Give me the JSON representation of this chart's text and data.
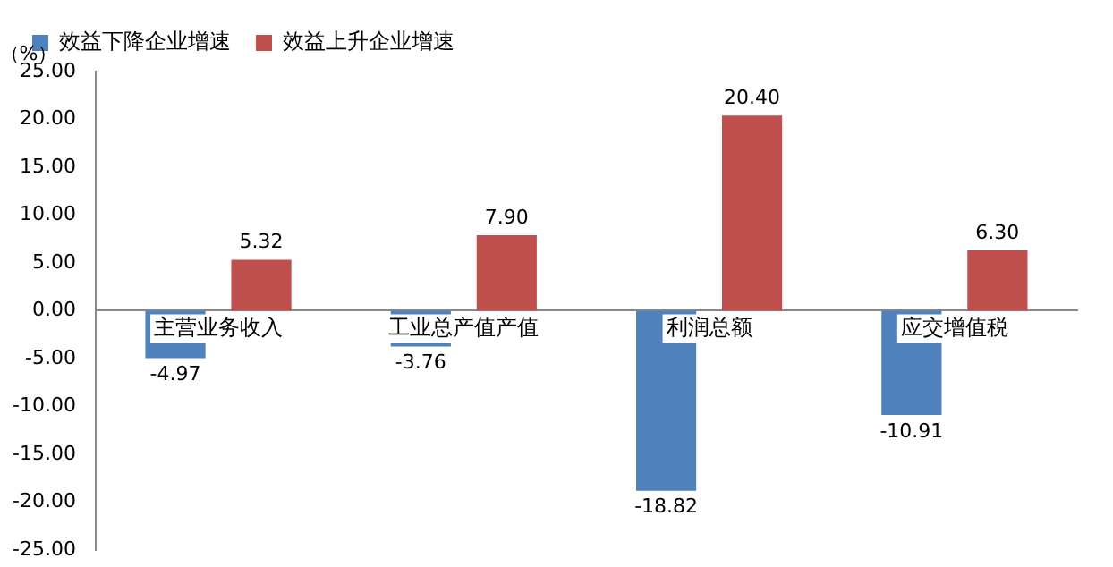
{
  "chart_data": {
    "type": "bar",
    "ylabel": "（%）",
    "categories": [
      "主营业务收入",
      "工业总产值产值",
      "利润总额",
      "应交增值税"
    ],
    "series": [
      {
        "name": "效益下降企业增速",
        "color": "#4f81bd",
        "values": [
          -4.97,
          -3.76,
          -18.82,
          -10.91
        ],
        "value_labels": [
          "-4.97",
          "-3.76",
          "-18.82",
          "-10.91"
        ]
      },
      {
        "name": "效益上升企业增速",
        "color": "#c0504d",
        "values": [
          5.32,
          7.9,
          20.4,
          6.3
        ],
        "value_labels": [
          "5.32",
          "7.90",
          "20.40",
          "6.30"
        ]
      }
    ],
    "ylim": [
      -25,
      25
    ],
    "yticks": [
      {
        "value": -25,
        "label": "-25.00"
      },
      {
        "value": -20,
        "label": "-20.00"
      },
      {
        "value": -15,
        "label": "-15.00"
      },
      {
        "value": -10,
        "label": "-10.00"
      },
      {
        "value": -5,
        "label": "-5.00"
      },
      {
        "value": 0,
        "label": "0.00"
      },
      {
        "value": 5,
        "label": "5.00"
      },
      {
        "value": 10,
        "label": "10.00"
      },
      {
        "value": 15,
        "label": "15.00"
      },
      {
        "value": 20,
        "label": "20.00"
      },
      {
        "value": 25,
        "label": "25.00"
      }
    ],
    "grid": false,
    "legend": "top"
  }
}
